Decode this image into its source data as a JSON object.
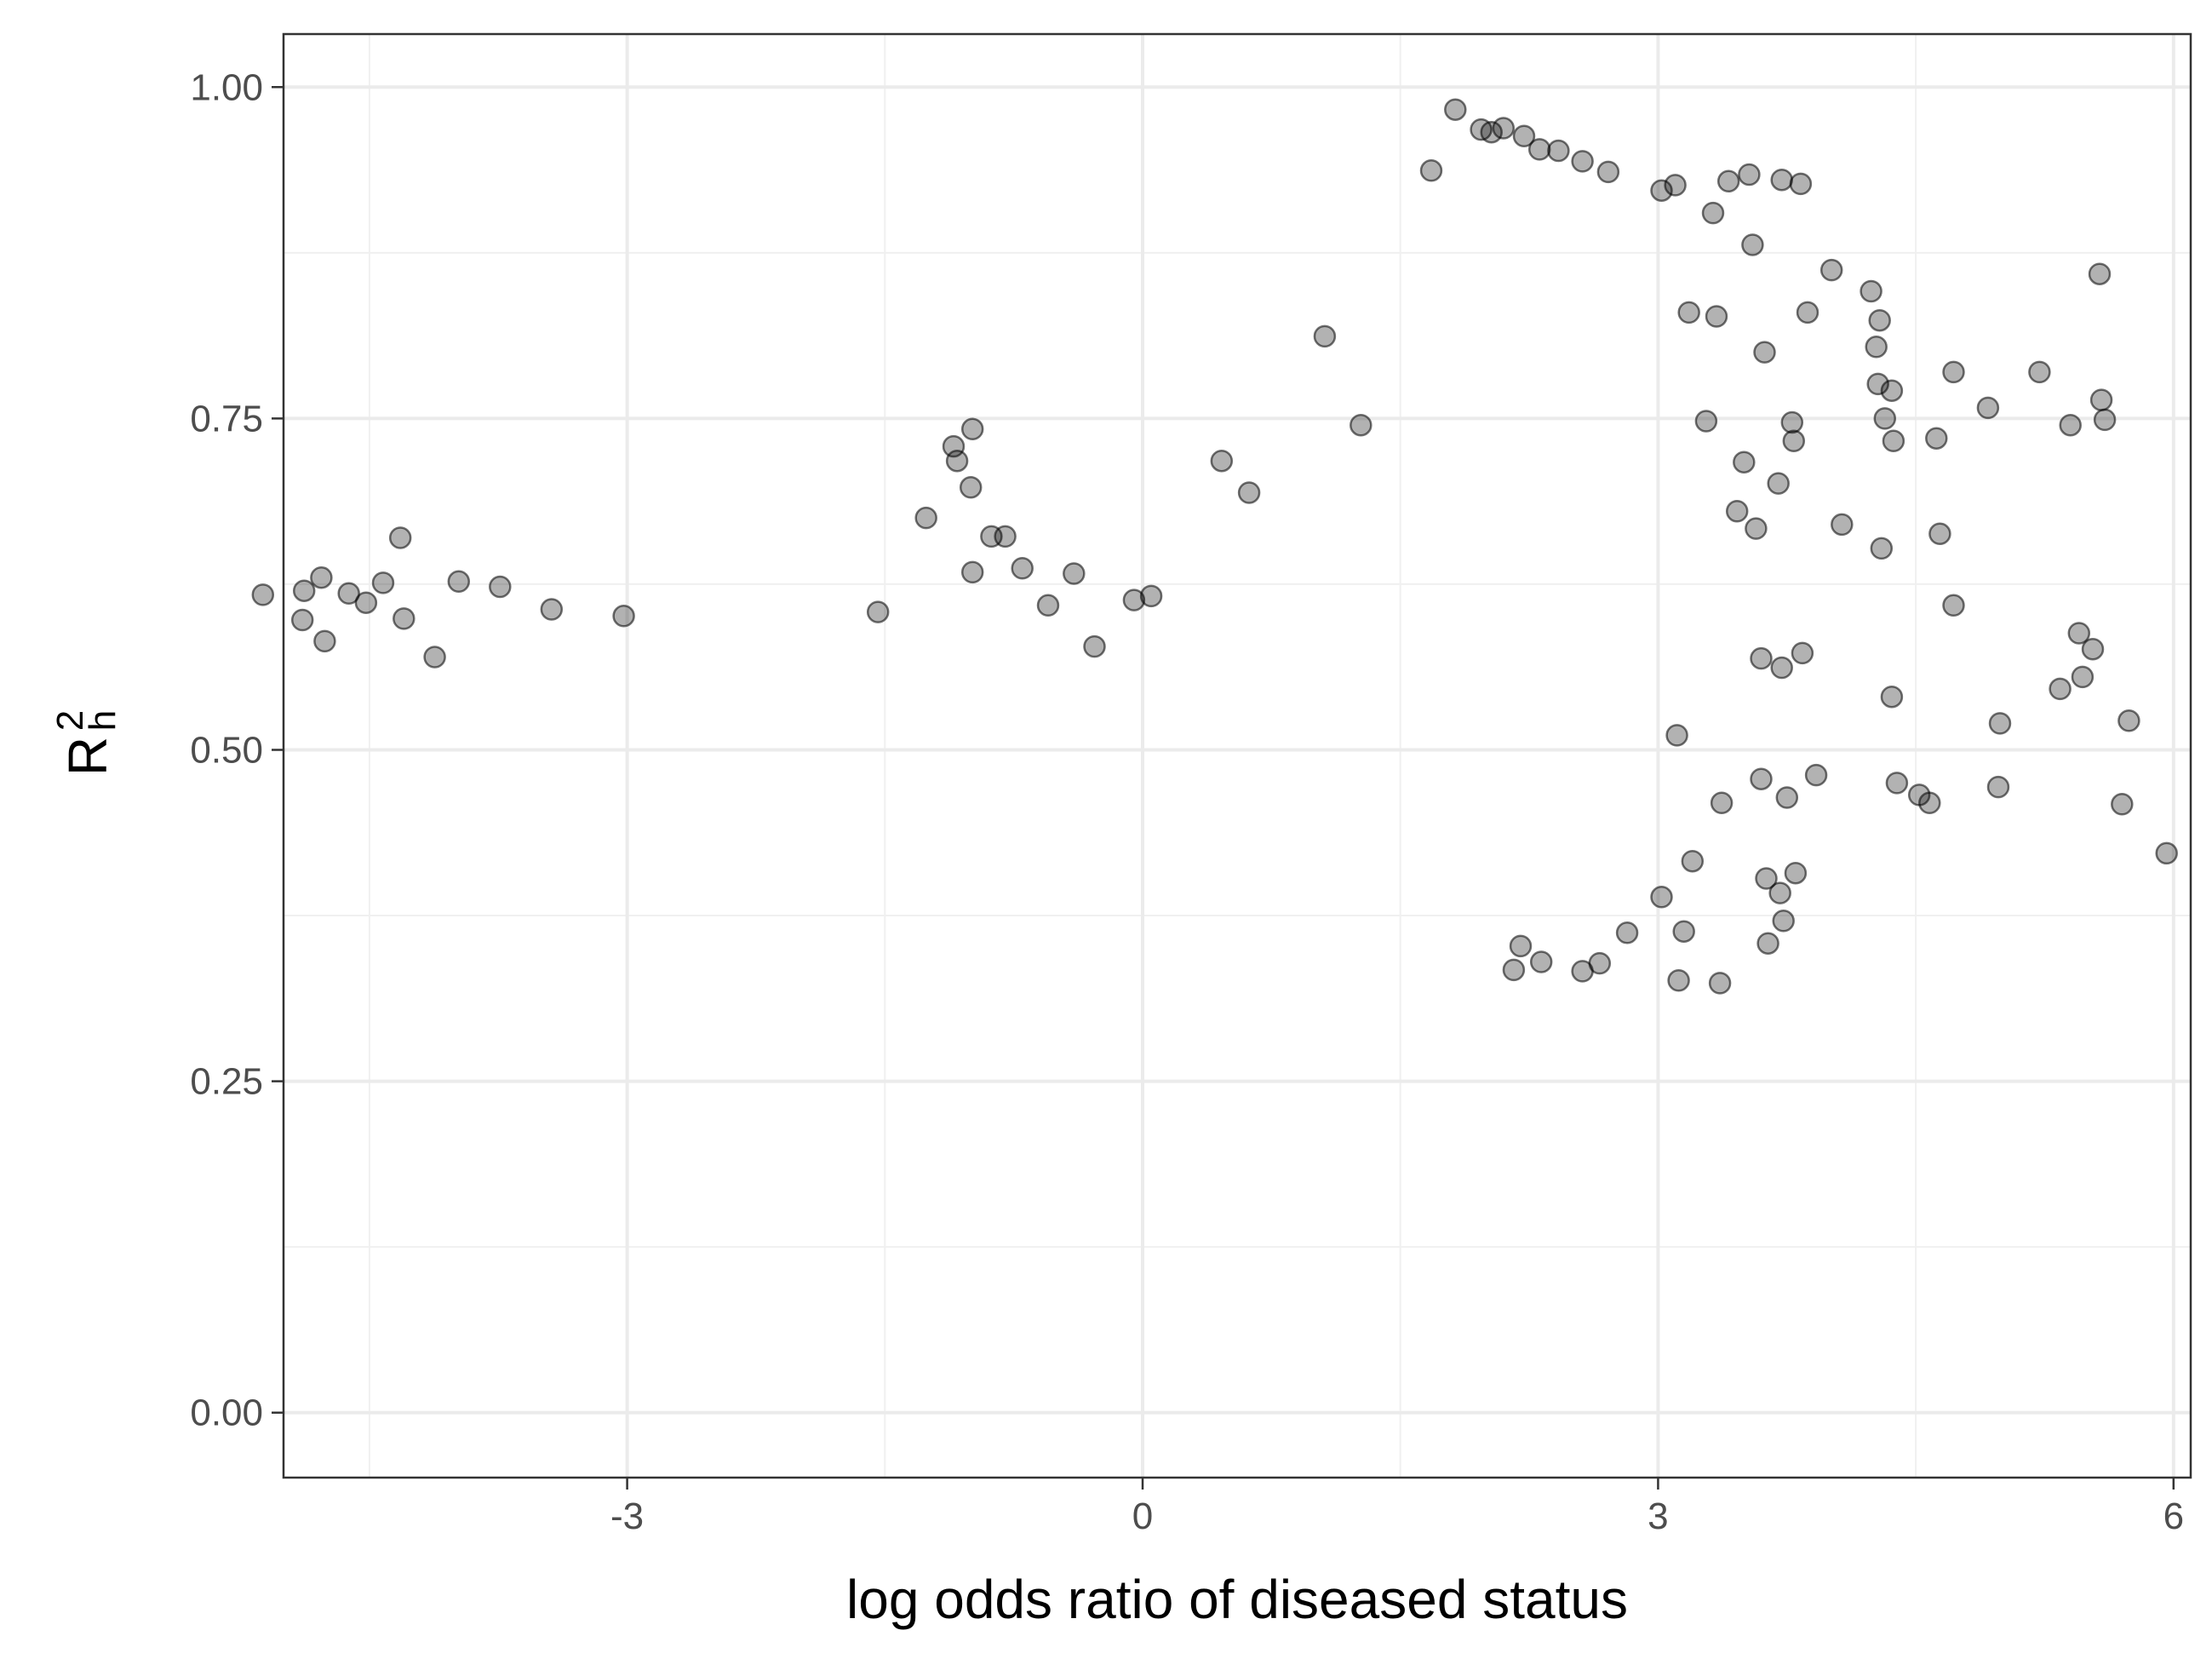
{
  "chart_data": {
    "type": "scatter",
    "xlabel": "log odds ratio of diseased status",
    "ylabel": {
      "base": "R",
      "superscript": "2",
      "subscript": "h"
    },
    "x_ticks": [
      "-3",
      "0",
      "3",
      "6"
    ],
    "y_ticks": [
      "0.00",
      "0.25",
      "0.50",
      "0.75",
      "1.00"
    ],
    "xlim": [
      -5.0,
      6.1
    ],
    "ylim": [
      -0.049,
      1.04
    ],
    "grid": true,
    "theme": "bw",
    "point_color": "#000000",
    "point_opacity": 0.3,
    "series": [
      {
        "points": [
          [
            -5.12,
            0.617
          ],
          [
            -4.89,
            0.598
          ],
          [
            -4.88,
            0.62
          ],
          [
            -4.78,
            0.63
          ],
          [
            -4.76,
            0.582
          ],
          [
            -4.62,
            0.618
          ],
          [
            -4.52,
            0.611
          ],
          [
            -4.42,
            0.626
          ],
          [
            -4.32,
            0.66
          ],
          [
            -4.3,
            0.599
          ],
          [
            -4.12,
            0.57
          ],
          [
            -3.98,
            0.627
          ],
          [
            -3.74,
            0.623
          ],
          [
            -3.44,
            0.606
          ],
          [
            -3.02,
            0.601
          ],
          [
            -1.54,
            0.604
          ],
          [
            -1.26,
            0.675
          ],
          [
            -1.1,
            0.729
          ],
          [
            -1.08,
            0.718
          ],
          [
            -0.99,
            0.742
          ],
          [
            -1.0,
            0.698
          ],
          [
            -0.99,
            0.634
          ],
          [
            -0.88,
            0.661
          ],
          [
            -0.8,
            0.661
          ],
          [
            -0.7,
            0.637
          ],
          [
            -0.55,
            0.609
          ],
          [
            -0.4,
            0.633
          ],
          [
            -0.28,
            0.578
          ],
          [
            -0.05,
            0.613
          ],
          [
            0.05,
            0.616
          ],
          [
            0.46,
            0.718
          ],
          [
            0.62,
            0.694
          ],
          [
            1.06,
            0.812
          ],
          [
            1.27,
            0.745
          ],
          [
            1.68,
            0.937
          ],
          [
            1.82,
            0.983
          ],
          [
            1.97,
            0.968
          ],
          [
            2.03,
            0.966
          ],
          [
            2.1,
            0.969
          ],
          [
            2.22,
            0.963
          ],
          [
            2.31,
            0.953
          ],
          [
            2.42,
            0.952
          ],
          [
            2.56,
            0.944
          ],
          [
            2.71,
            0.936
          ],
          [
            3.02,
            0.922
          ],
          [
            3.1,
            0.926
          ],
          [
            3.32,
            0.905
          ],
          [
            3.41,
            0.929
          ],
          [
            3.53,
            0.934
          ],
          [
            3.72,
            0.93
          ],
          [
            3.83,
            0.927
          ],
          [
            3.55,
            0.881
          ],
          [
            4.01,
            0.862
          ],
          [
            4.24,
            0.846
          ],
          [
            4.29,
            0.824
          ],
          [
            4.27,
            0.804
          ],
          [
            4.28,
            0.776
          ],
          [
            4.36,
            0.771
          ],
          [
            4.32,
            0.75
          ],
          [
            4.37,
            0.733
          ],
          [
            4.07,
            0.67
          ],
          [
            4.3,
            0.652
          ],
          [
            4.36,
            0.54
          ],
          [
            4.39,
            0.475
          ],
          [
            4.52,
            0.466
          ],
          [
            4.58,
            0.46
          ],
          [
            4.62,
            0.735
          ],
          [
            4.64,
            0.663
          ],
          [
            4.72,
            0.609
          ],
          [
            4.72,
            0.785
          ],
          [
            4.92,
            0.758
          ],
          [
            4.98,
            0.472
          ],
          [
            4.99,
            0.52
          ],
          [
            5.22,
            0.785
          ],
          [
            5.34,
            0.546
          ],
          [
            5.4,
            0.745
          ],
          [
            5.45,
            0.588
          ],
          [
            5.47,
            0.555
          ],
          [
            5.53,
            0.576
          ],
          [
            5.58,
            0.764
          ],
          [
            5.6,
            0.749
          ],
          [
            5.57,
            0.859
          ],
          [
            5.7,
            0.459
          ],
          [
            5.74,
            0.522
          ],
          [
            5.96,
            0.422
          ],
          [
            3.18,
            0.83
          ],
          [
            3.34,
            0.827
          ],
          [
            3.62,
            0.8
          ],
          [
            3.28,
            0.748
          ],
          [
            3.5,
            0.717
          ],
          [
            3.78,
            0.747
          ],
          [
            3.79,
            0.733
          ],
          [
            3.87,
            0.83
          ],
          [
            3.7,
            0.701
          ],
          [
            3.46,
            0.68
          ],
          [
            3.57,
            0.667
          ],
          [
            3.84,
            0.573
          ],
          [
            3.6,
            0.569
          ],
          [
            3.72,
            0.562
          ],
          [
            3.92,
            0.481
          ],
          [
            3.75,
            0.464
          ],
          [
            3.63,
            0.403
          ],
          [
            3.71,
            0.392
          ],
          [
            3.8,
            0.407
          ],
          [
            3.73,
            0.371
          ],
          [
            3.64,
            0.354
          ],
          [
            3.36,
            0.324
          ],
          [
            3.12,
            0.326
          ],
          [
            3.2,
            0.416
          ],
          [
            3.02,
            0.389
          ],
          [
            2.82,
            0.362
          ],
          [
            2.56,
            0.333
          ],
          [
            2.66,
            0.339
          ],
          [
            2.32,
            0.34
          ],
          [
            2.16,
            0.334
          ],
          [
            2.2,
            0.352
          ],
          [
            3.15,
            0.363
          ],
          [
            3.11,
            0.511
          ],
          [
            3.37,
            0.46
          ],
          [
            3.6,
            0.478
          ]
        ]
      }
    ]
  }
}
